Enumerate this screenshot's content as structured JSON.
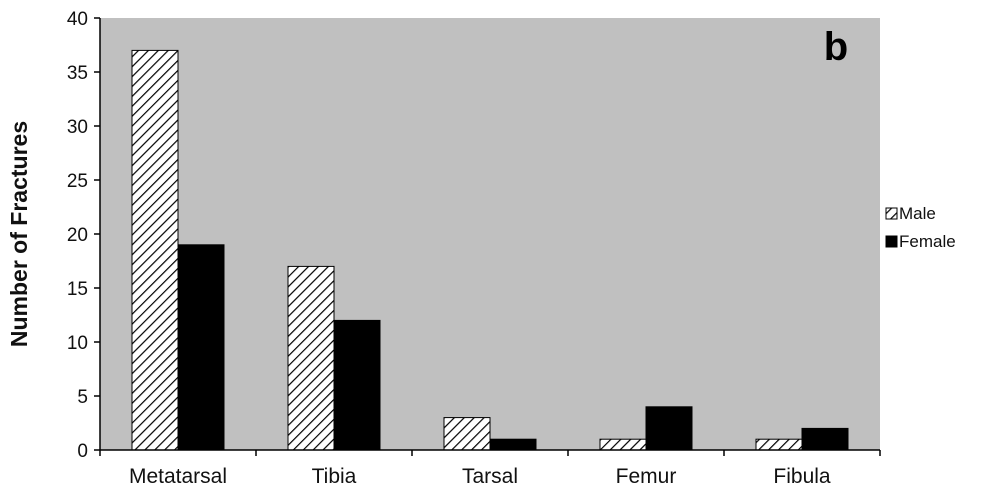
{
  "chart_data": {
    "type": "bar",
    "panel_label": "b",
    "title": "",
    "xlabel": "",
    "ylabel": "Number of Fractures",
    "categories": [
      "Metatarsal",
      "Tibia",
      "Tarsal",
      "Femur",
      "Fibula"
    ],
    "series": [
      {
        "name": "Male",
        "values": [
          37,
          17,
          3,
          1,
          1
        ],
        "pattern": "diagonal-hatch",
        "color": "#ffffff"
      },
      {
        "name": "Female",
        "values": [
          19,
          12,
          1,
          4,
          2
        ],
        "pattern": "solid",
        "color": "#000000"
      }
    ],
    "ylim": [
      0,
      40
    ],
    "yticks": [
      0,
      5,
      10,
      15,
      20,
      25,
      30,
      35,
      40
    ],
    "plot_background": "#c0c0c0",
    "grid": false,
    "legend": "right"
  }
}
